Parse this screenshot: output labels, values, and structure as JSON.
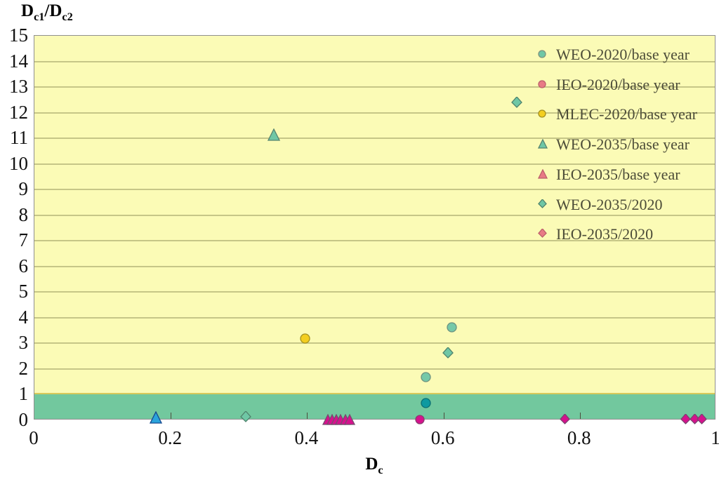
{
  "figure": {
    "y_axis_title_parts": [
      {
        "t": "D",
        "sub": false
      },
      {
        "t": "c1",
        "sub": true
      },
      {
        "t": "/",
        "sub": false
      },
      {
        "t": "D",
        "sub": false
      },
      {
        "t": "c2",
        "sub": true
      }
    ],
    "x_axis_title_parts": [
      {
        "t": "D",
        "sub": false
      },
      {
        "t": "c",
        "sub": true
      }
    ]
  },
  "legend": {
    "items": [
      {
        "label": "WEO-2020/base year",
        "marker": "circle",
        "fill": "#6FC7A5",
        "stroke": "#7E937E"
      },
      {
        "label": "IEO-2020/base year",
        "marker": "circle",
        "fill": "#E87B85",
        "stroke": "#BC5F6B"
      },
      {
        "label": "MLEC-2020/base year",
        "marker": "circle",
        "fill": "#F3CE20",
        "stroke": "#A3901F"
      },
      {
        "label": "WEO-2035/base year",
        "marker": "triangle",
        "fill": "#6FC7A5",
        "stroke": "#56836F"
      },
      {
        "label": "IEO-2035/base year",
        "marker": "triangle",
        "fill": "#E87B85",
        "stroke": "#BC5F6B"
      },
      {
        "label": "WEO-2035/2020",
        "marker": "diamond",
        "fill": "#6FC7A5",
        "stroke": "#4F826C"
      },
      {
        "label": "IEO-2035/2020",
        "marker": "diamond",
        "fill": "#E87B85",
        "stroke": "#BC5F6B"
      }
    ]
  },
  "chart_data": {
    "type": "scatter",
    "title": "",
    "ylabel": "Dc1/Dc2",
    "xlabel": "Dc",
    "xlim": [
      0,
      1
    ],
    "ylim": [
      0,
      15
    ],
    "x_ticks": [
      0,
      0.2,
      0.4,
      0.6,
      0.8,
      1
    ],
    "x_tick_labels": [
      "0",
      "0.2",
      "0.4",
      "0.6",
      "0.8",
      "1"
    ],
    "y_ticks": [
      0,
      1,
      2,
      3,
      4,
      5,
      6,
      7,
      8,
      9,
      10,
      11,
      12,
      13,
      14,
      15
    ],
    "grid": "horizontal",
    "legend_position": "inside-top-right",
    "plot_background": "#FBFBB6",
    "highlight_band": {
      "y_from": 0,
      "y_to": 1,
      "color": "#72C89E"
    },
    "series": [
      {
        "name": "WEO-2020/base year",
        "marker": "circle",
        "size": 15,
        "fill": "#76C9A8",
        "stroke": "#6B9180",
        "points": [
          {
            "x": 0.612,
            "y": 3.64
          },
          {
            "x": 0.574,
            "y": 1.67
          },
          {
            "x": 0.574,
            "y": 0.66,
            "fill": "#0E9AA0",
            "stroke": "#0A6F73"
          }
        ]
      },
      {
        "name": "IEO-2020/base year",
        "marker": "circle",
        "size": 14,
        "fill": "#D6118D",
        "stroke": "#8A3D71",
        "points": [
          {
            "x": 0.565,
            "y": 0.04
          }
        ]
      },
      {
        "name": "MLEC-2020/base year",
        "marker": "circle",
        "size": 15,
        "fill": "#F3CE20",
        "stroke": "#A3901F",
        "points": [
          {
            "x": 0.397,
            "y": 3.2
          }
        ]
      },
      {
        "name": "WEO-2035/base year",
        "marker": "triangle",
        "size": 18,
        "fill": "#6FC7A5",
        "stroke": "#56836F",
        "points": [
          {
            "x": 0.351,
            "y": 11.15
          },
          {
            "x": 0.178,
            "y": 0.12,
            "fill": "#2AA4DC",
            "stroke": "#16488E"
          }
        ]
      },
      {
        "name": "IEO-2035/base year",
        "marker": "triangle",
        "size": 16,
        "fill": "#D6118D",
        "stroke": "#73506E",
        "points": [
          {
            "x": 0.43,
            "y": 0.02
          },
          {
            "x": 0.437,
            "y": 0.02
          },
          {
            "x": 0.443,
            "y": 0.02
          },
          {
            "x": 0.449,
            "y": 0.02
          },
          {
            "x": 0.456,
            "y": 0.02
          },
          {
            "x": 0.462,
            "y": 0.02
          }
        ]
      },
      {
        "name": "WEO-2035/2020",
        "marker": "diamond",
        "size": 16,
        "fill": "#6FC7A5",
        "stroke": "#4F826C",
        "points": [
          {
            "x": 0.708,
            "y": 12.4
          },
          {
            "x": 0.607,
            "y": 2.63
          },
          {
            "x": 0.31,
            "y": 0.13
          }
        ]
      },
      {
        "name": "IEO-2035/2020",
        "marker": "diamond",
        "size": 15,
        "fill": "#D6118D",
        "stroke": "#7A4470",
        "points": [
          {
            "x": 0.778,
            "y": 0.04
          },
          {
            "x": 0.955,
            "y": 0.04
          },
          {
            "x": 0.969,
            "y": 0.04
          },
          {
            "x": 0.979,
            "y": 0.04
          }
        ]
      }
    ]
  }
}
